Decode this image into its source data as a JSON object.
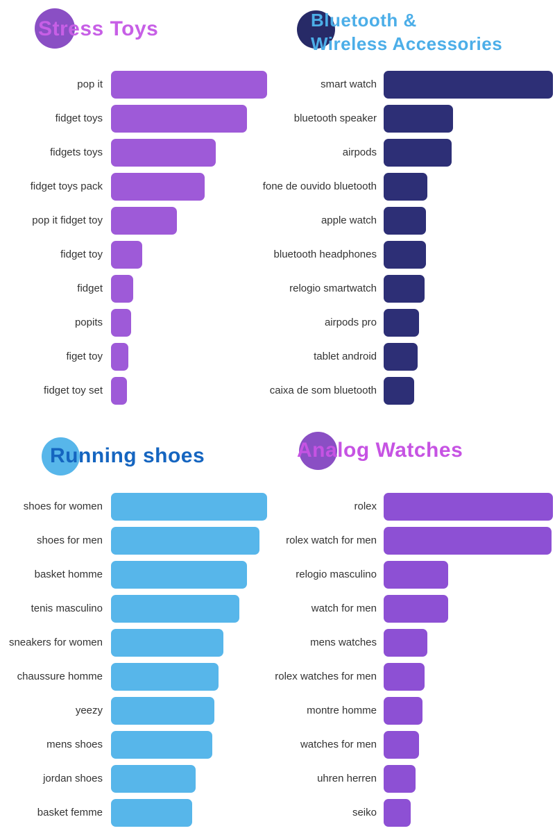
{
  "page": {
    "background": "#ffffff",
    "label_color": "#333333"
  },
  "chart_data": [
    {
      "type": "bar",
      "orientation": "horizontal",
      "title": "Stress Toys",
      "title_color": "#c75fe6",
      "circle_color": "#8a4fc4",
      "bar_color": "#9e5ad8",
      "categories": [
        "pop it",
        "fidget toys",
        "fidgets toys",
        "fidget toys pack",
        "pop it fidget toy",
        "fidget toy",
        "fidget",
        "popits",
        "figet toy",
        "fidget toy set"
      ],
      "values": [
        100,
        87,
        67,
        60,
        42,
        20,
        14,
        13,
        11,
        10
      ],
      "xlim": [
        0,
        100
      ],
      "grid": false,
      "legend": false
    },
    {
      "type": "bar",
      "orientation": "horizontal",
      "title": "Bluetooth &\nWireless Accessories",
      "title_color": "#4caee8",
      "circle_color": "#272a67",
      "bar_color": "#2d2f76",
      "categories": [
        "smart watch",
        "bluetooth speaker",
        "airpods",
        "fone de ouvido bluetooth",
        "apple watch",
        "bluetooth headphones",
        "relogio smartwatch",
        "airpods pro",
        "tablet android",
        "caixa de som bluetooth"
      ],
      "values": [
        100,
        41,
        40,
        26,
        25,
        25,
        24,
        21,
        20,
        18
      ],
      "xlim": [
        0,
        100
      ],
      "grid": false,
      "legend": false
    },
    {
      "type": "bar",
      "orientation": "horizontal",
      "title": "Running shoes",
      "title_color": "#1565c0",
      "circle_color": "#57b6ea",
      "bar_color": "#57b6ea",
      "categories": [
        "shoes for women",
        "shoes for men",
        "basket homme",
        "tenis masculino",
        "sneakers for women",
        "chaussure homme",
        "yeezy",
        "mens shoes",
        "jordan shoes",
        "basket femme"
      ],
      "values": [
        100,
        95,
        87,
        82,
        72,
        69,
        66,
        65,
        54,
        52
      ],
      "xlim": [
        0,
        100
      ],
      "grid": false,
      "legend": false
    },
    {
      "type": "bar",
      "orientation": "horizontal",
      "title": "Analog Watches",
      "title_color": "#c653e3",
      "circle_color": "#8a4fc4",
      "bar_color": "#8d50d4",
      "categories": [
        "rolex",
        "rolex watch for men",
        "relogio masculino",
        "watch for men",
        "mens watches",
        "rolex watches for men",
        "montre homme",
        "watches for men",
        "uhren herren",
        "seiko"
      ],
      "values": [
        100,
        99,
        38,
        38,
        26,
        24,
        23,
        21,
        19,
        16
      ],
      "xlim": [
        0,
        100
      ],
      "grid": false,
      "legend": false
    }
  ]
}
